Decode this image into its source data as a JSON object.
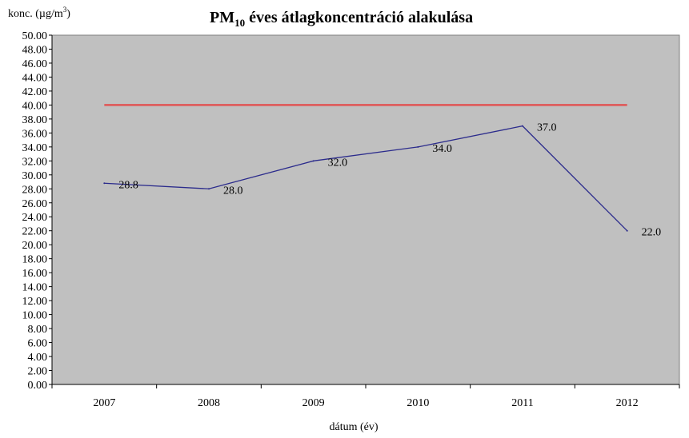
{
  "chart_data": {
    "type": "line",
    "title": "PM10 éves átlagkoncentráció alakulása",
    "title_main": "PM",
    "title_sub": "10",
    "title_rest": " éves átlagkoncentráció  alakulása",
    "ylabel": "konc. (µg/m3)",
    "ylabel_main": "konc. (µg/m",
    "ylabel_sup": "3",
    "ylabel_end": ")",
    "xlabel": "dátum (év)",
    "categories": [
      "2007",
      "2008",
      "2009",
      "2010",
      "2011",
      "2012"
    ],
    "ylim": [
      0,
      50
    ],
    "ytick_step": 2,
    "ytick_labels": [
      "0.00",
      "2.00",
      "4.00",
      "6.00",
      "8.00",
      "10.00",
      "12.00",
      "14.00",
      "16.00",
      "18.00",
      "20.00",
      "22.00",
      "24.00",
      "26.00",
      "28.00",
      "30.00",
      "32.00",
      "34.00",
      "36.00",
      "38.00",
      "40.00",
      "42.00",
      "44.00",
      "46.00",
      "48.00",
      "50.00"
    ],
    "series": [
      {
        "values": [
          28.8,
          28.0,
          32.0,
          34.0,
          37.0,
          22.0
        ],
        "labels": [
          "28.8",
          "28.0",
          "32.0",
          "34.0",
          "37.0",
          "22.0"
        ],
        "color": "#2b2b8c"
      },
      {
        "values": [
          40,
          40,
          40,
          40,
          40,
          40
        ],
        "color": "#e05555"
      }
    ],
    "plot_background": "#c0c0c0",
    "grid": false,
    "legend": "none"
  }
}
